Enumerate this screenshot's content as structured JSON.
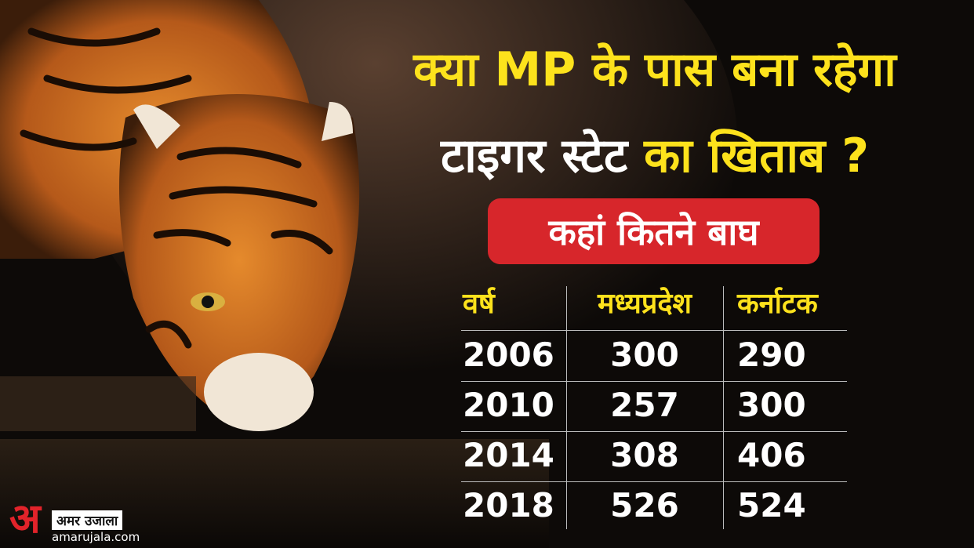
{
  "headline": {
    "line1": "क्या MP के पास बना रहेगा",
    "line2_white": "टाइगर स्टेट",
    "line2_yellow": "का खिताब ?"
  },
  "badge": "कहां कितने बाघ",
  "table": {
    "headers": [
      "वर्ष",
      "मध्यप्रदेश",
      "कर्नाटक"
    ],
    "rows": [
      [
        2006,
        300,
        290
      ],
      [
        2010,
        257,
        300
      ],
      [
        2014,
        308,
        406
      ],
      [
        2018,
        526,
        524
      ]
    ]
  },
  "logo": {
    "mark": "अ",
    "name": "अमर उजाला",
    "site": "amarujala.com"
  }
}
